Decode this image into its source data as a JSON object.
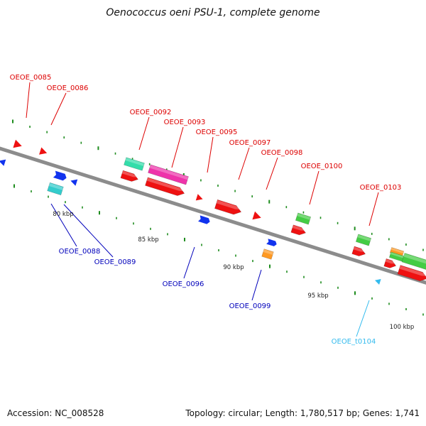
{
  "title": "Oenococcus oeni PSU-1, complete genome",
  "footer": {
    "accession": "Accession: NC_008528",
    "summary": "Topology: circular; Length: 1,780,517 bp; Genes: 1,741"
  },
  "colors": {
    "backbone": "#8c8c8c",
    "tick": "#1e8c1e",
    "label_red": "#dd0000",
    "label_blue": "#0000bb",
    "label_cyan": "#33bbee",
    "gene_red": "#ee1111",
    "gene_blue": "#1133ee",
    "gene_teal": "#33ddaa",
    "gene_cyan": "#33cccc",
    "gene_magenta": "#ee33aa",
    "gene_green": "#44cc44",
    "gene_orange": "#ff9922",
    "gene_trna": "#33bbee"
  },
  "scale": {
    "unit": "kbp",
    "labels": [
      "80 kbp",
      "85 kbp",
      "90 kbp",
      "95 kbp",
      "100 kbp"
    ]
  },
  "genes": {
    "top": [
      "OEOE_0085",
      "OEOE_0086",
      "OEOE_0092",
      "OEOE_0093",
      "OEOE_0095",
      "OEOE_0097",
      "OEOE_0098",
      "OEOE_0100",
      "OEOE_0103"
    ],
    "bottom": [
      "OEOE_0088",
      "OEOE_0089",
      "OEOE_0096",
      "OEOE_0099",
      "OEOE_t0104"
    ]
  }
}
